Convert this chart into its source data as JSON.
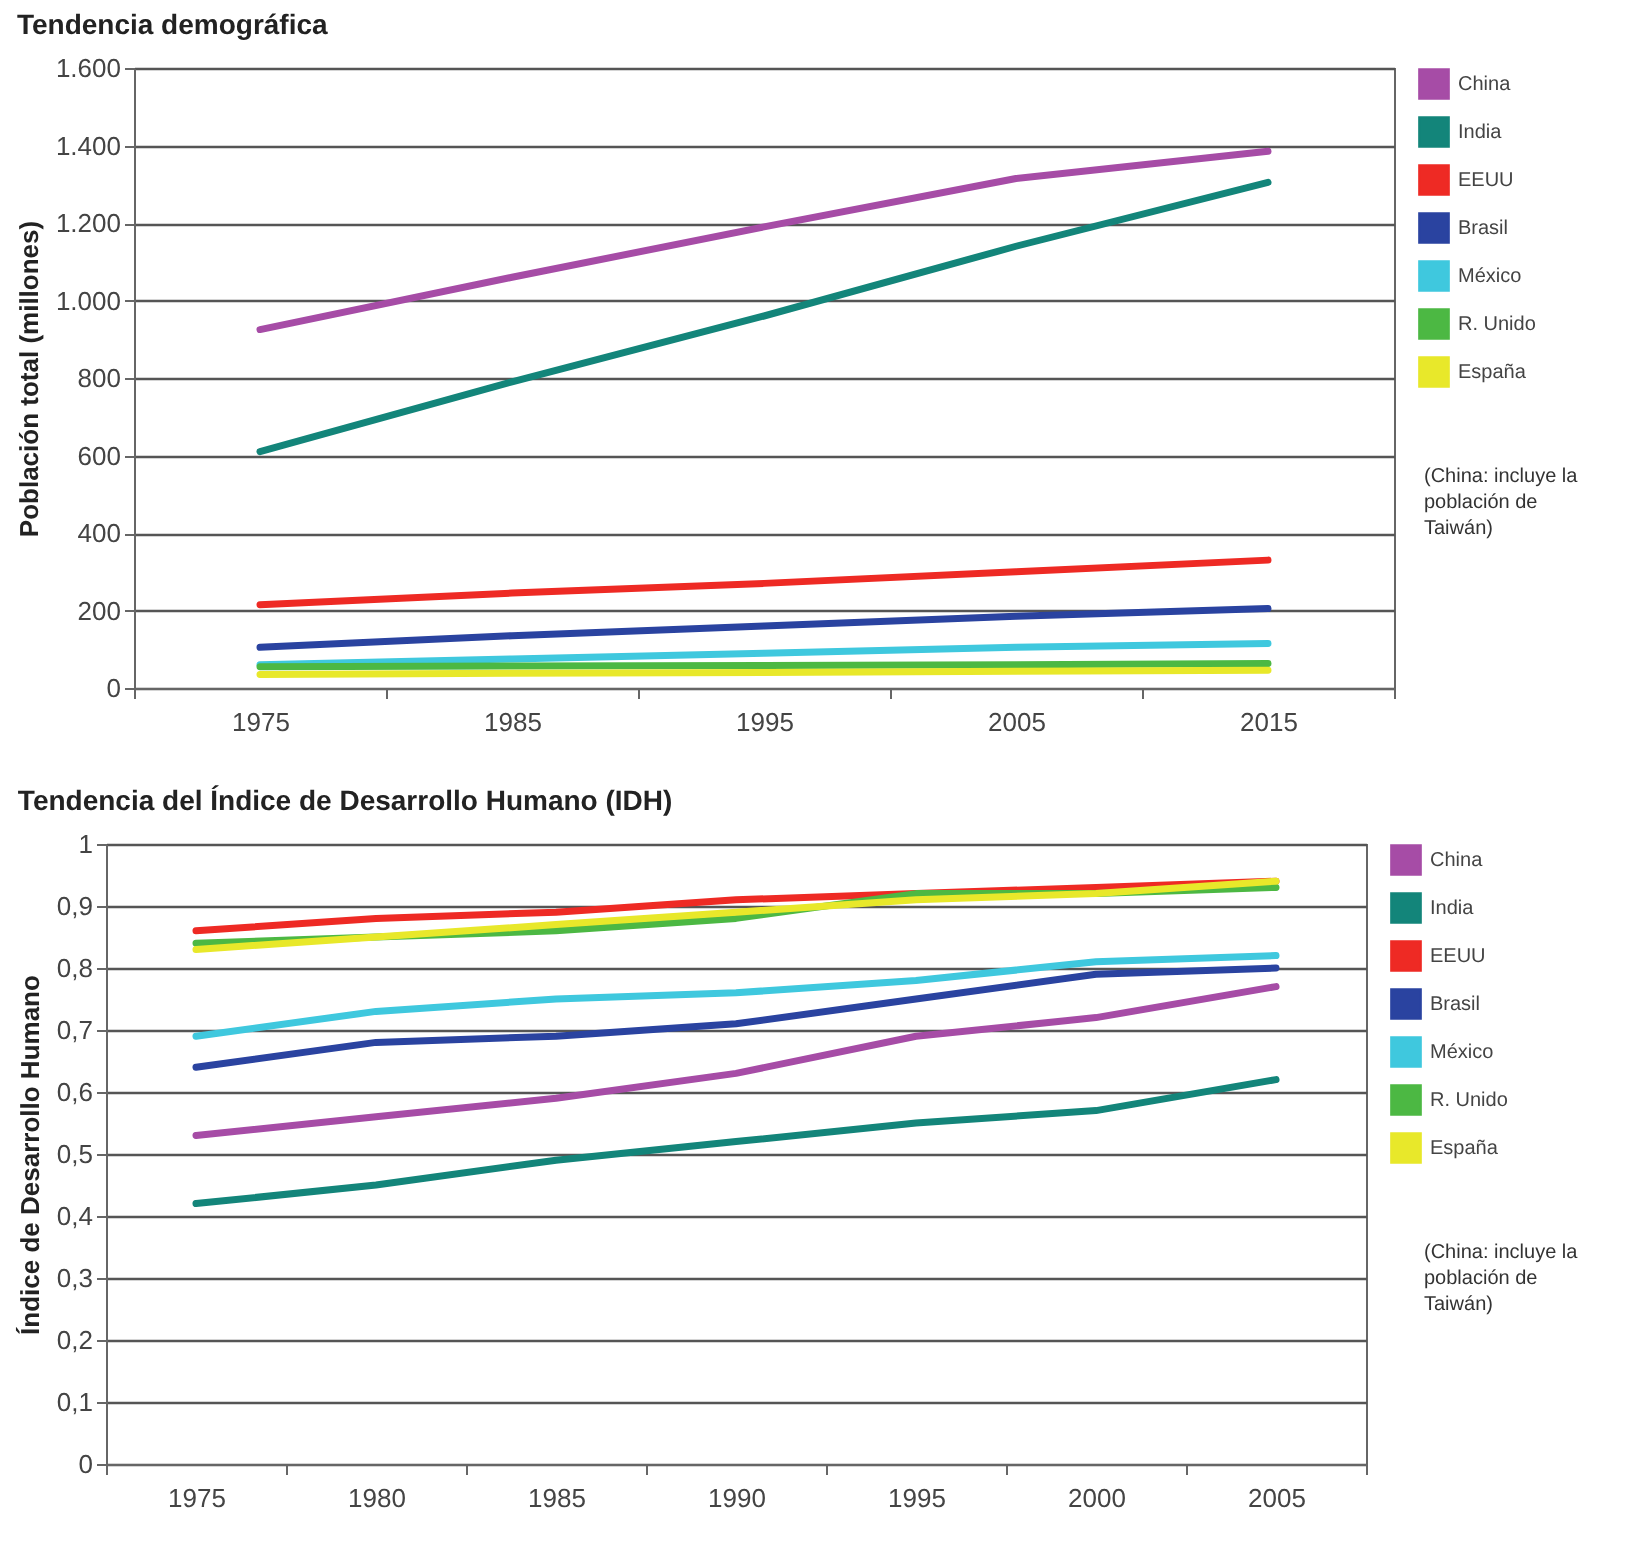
{
  "chart_data": [
    {
      "type": "line",
      "title": "Tendencia demográfica",
      "ylabel": "Población total (millones)",
      "categories": [
        "1975",
        "1985",
        "1995",
        "2005",
        "2015"
      ],
      "series": [
        {
          "name": "China",
          "color": "#a64ca6",
          "values": [
            925,
            1060,
            1190,
            1315,
            1385
          ]
        },
        {
          "name": "India",
          "color": "#13857a",
          "values": [
            610,
            790,
            960,
            1140,
            1305
          ]
        },
        {
          "name": "EEUU",
          "color": "#ee2a24",
          "values": [
            215,
            245,
            270,
            300,
            330
          ]
        },
        {
          "name": "Brasil",
          "color": "#2a43a0",
          "values": [
            105,
            135,
            160,
            185,
            205
          ]
        },
        {
          "name": "México",
          "color": "#3fc8de",
          "values": [
            60,
            75,
            90,
            105,
            115
          ]
        },
        {
          "name": "R. Unido",
          "color": "#4cb843",
          "values": [
            55,
            57,
            58,
            60,
            63
          ]
        },
        {
          "name": "España",
          "color": "#e8e82a",
          "values": [
            35,
            38,
            40,
            43,
            46
          ]
        }
      ],
      "ylim": [
        0,
        1600
      ],
      "yticks": [
        0,
        200,
        400,
        600,
        800,
        {
          "value": 1000,
          "label": "1.000"
        },
        {
          "value": 1200,
          "label": "1.200"
        },
        {
          "value": 1400,
          "label": "1.400"
        },
        {
          "value": 1600,
          "label": "1.600"
        }
      ],
      "grid": "y",
      "legend": "right",
      "annotations": [
        "(China: incluye la población de Taiwán)"
      ]
    },
    {
      "type": "line",
      "title": "Tendencia del Índice de Desarrollo Humano (IDH)",
      "ylabel": "Índice de Desarrollo Humano",
      "categories": [
        "1975",
        "1980",
        "1985",
        "1990",
        "1995",
        "2000",
        "2005"
      ],
      "series": [
        {
          "name": "China",
          "color": "#a64ca6",
          "values": [
            0.53,
            0.56,
            0.59,
            0.63,
            0.69,
            0.72,
            0.77
          ]
        },
        {
          "name": "India",
          "color": "#13857a",
          "values": [
            0.42,
            0.45,
            0.49,
            0.52,
            0.55,
            0.57,
            0.62
          ]
        },
        {
          "name": "EEUU",
          "color": "#ee2a24",
          "values": [
            0.86,
            0.88,
            0.89,
            0.91,
            0.92,
            0.93,
            0.94
          ]
        },
        {
          "name": "Brasil",
          "color": "#2a43a0",
          "values": [
            0.64,
            0.68,
            0.69,
            0.71,
            0.75,
            0.79,
            0.8
          ]
        },
        {
          "name": "México",
          "color": "#3fc8de",
          "values": [
            0.69,
            0.73,
            0.75,
            0.76,
            0.78,
            0.81,
            0.82
          ]
        },
        {
          "name": "R. Unido",
          "color": "#4cb843",
          "values": [
            0.84,
            0.85,
            0.86,
            0.88,
            0.92,
            0.92,
            0.93
          ]
        },
        {
          "name": "España",
          "color": "#e8e82a",
          "values": [
            0.83,
            0.85,
            0.87,
            0.89,
            0.91,
            0.92,
            0.94
          ]
        }
      ],
      "ylim": [
        0,
        1
      ],
      "yticks": [
        0,
        {
          "value": 0.1,
          "label": "0,1"
        },
        {
          "value": 0.2,
          "label": "0,2"
        },
        {
          "value": 0.3,
          "label": "0,3"
        },
        {
          "value": 0.4,
          "label": "0,4"
        },
        {
          "value": 0.5,
          "label": "0,5"
        },
        {
          "value": 0.6,
          "label": "0,6"
        },
        {
          "value": 0.7,
          "label": "0,7"
        },
        {
          "value": 0.8,
          "label": "0,8"
        },
        {
          "value": 0.9,
          "label": "0,9"
        },
        1
      ],
      "grid": "y",
      "legend": "right",
      "annotations": [
        "(China: incluye la población de Taiwán)"
      ]
    }
  ]
}
